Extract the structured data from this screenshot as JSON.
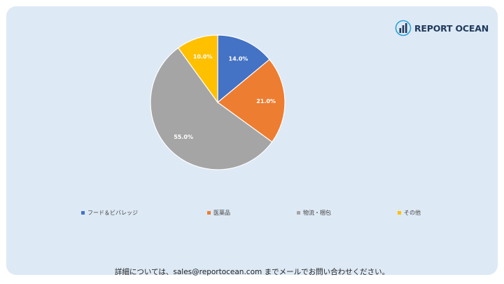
{
  "brand": {
    "name": "REPORT OCEAN",
    "logo_icon": "bar-chart-globe-icon",
    "colors": {
      "text": "#1f3a5c",
      "accent": "#2aa3d8"
    }
  },
  "chart_data": {
    "type": "pie",
    "title": "",
    "labels": [
      "フード＆ビバレッジ",
      "医薬品",
      "物流・梱包",
      "その他"
    ],
    "values": [
      14.0,
      21.0,
      55.0,
      10.0
    ],
    "value_labels": [
      "14.0%",
      "21.0%",
      "55.0%",
      "10.0%"
    ],
    "colors": [
      "#4472c4",
      "#ed7d31",
      "#a5a5a5",
      "#ffc000"
    ],
    "start_angle": "12 o'clock",
    "direction": "clockwise",
    "legend_position": "bottom"
  },
  "footer": {
    "text": "詳細については、sales@reportocean.com までメールでお問い合わせください。"
  }
}
